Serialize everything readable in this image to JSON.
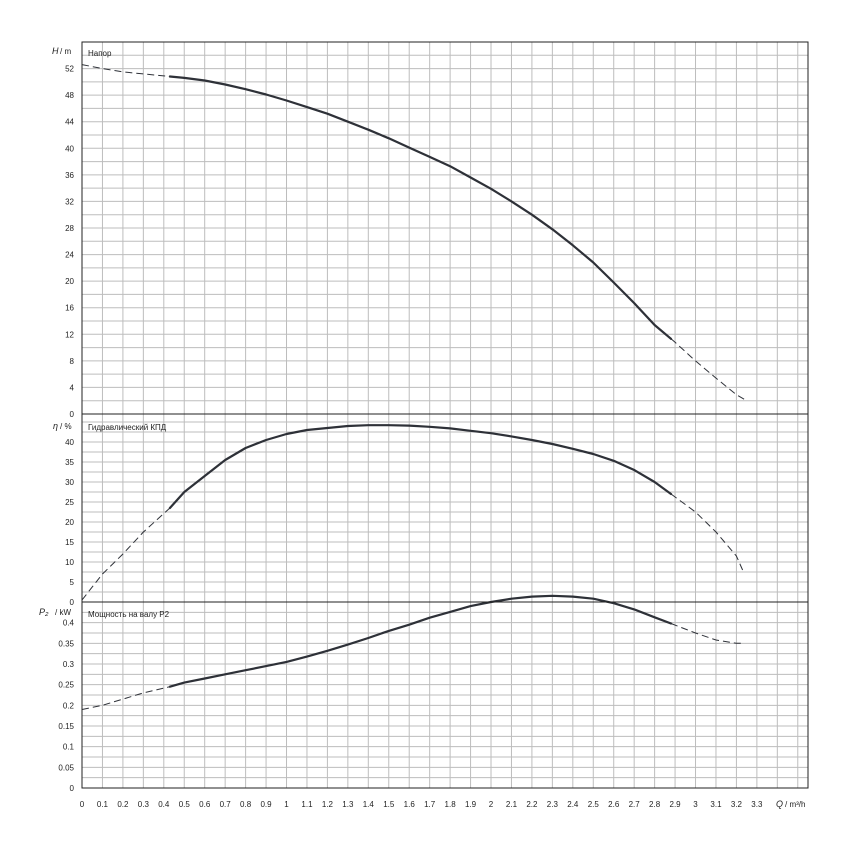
{
  "chart_data": [
    {
      "type": "line",
      "title": "Напор",
      "ylabel": "H",
      "yunit": "m",
      "xlabel": "Q",
      "xunit": "m³/h",
      "xlim": [
        0,
        3.55
      ],
      "ylim": [
        0,
        56
      ],
      "yticks": [
        0,
        4,
        8,
        12,
        16,
        20,
        24,
        28,
        32,
        36,
        40,
        44,
        48,
        52
      ],
      "ytick_labels": [
        "0",
        "4",
        "8",
        "12",
        "16",
        "20",
        "24",
        "28",
        "32",
        "36",
        "40",
        "44",
        "48",
        "52"
      ],
      "grid": true,
      "series": [
        {
          "x": [
            0,
            0.1,
            0.2,
            0.3,
            0.4,
            0.5,
            0.6,
            0.7,
            0.8,
            0.9,
            1.0,
            1.1,
            1.2,
            1.3,
            1.4,
            1.5,
            1.6,
            1.7,
            1.8,
            1.9,
            2.0,
            2.1,
            2.2,
            2.3,
            2.4,
            2.5,
            2.6,
            2.7,
            2.8,
            2.9,
            3.0,
            3.1,
            3.2,
            3.25
          ],
          "y": [
            52.6,
            52.0,
            51.5,
            51.2,
            50.9,
            50.6,
            50.2,
            49.6,
            48.9,
            48.1,
            47.2,
            46.2,
            45.2,
            44.0,
            42.8,
            41.5,
            40.1,
            38.7,
            37.3,
            35.6,
            33.9,
            32.0,
            30.0,
            27.8,
            25.4,
            22.8,
            19.8,
            16.7,
            13.4,
            10.8,
            8.0,
            5.4,
            2.9,
            2.0
          ],
          "solid_range": [
            0.43,
            2.88
          ]
        }
      ]
    },
    {
      "type": "line",
      "title": "Гидравлический КПД",
      "ylabel": "η",
      "yunit": "%",
      "xlabel": "Q",
      "xunit": "m³/h",
      "xlim": [
        0,
        3.55
      ],
      "ylim": [
        0,
        47
      ],
      "yticks": [
        0,
        5,
        10,
        15,
        20,
        25,
        30,
        35,
        40
      ],
      "ytick_labels": [
        "0",
        "5",
        "10",
        "15",
        "20",
        "25",
        "30",
        "35",
        "40"
      ],
      "grid": true,
      "series": [
        {
          "x": [
            0,
            0.1,
            0.2,
            0.3,
            0.43,
            0.5,
            0.6,
            0.7,
            0.8,
            0.9,
            1.0,
            1.1,
            1.2,
            1.3,
            1.4,
            1.5,
            1.6,
            1.7,
            1.8,
            1.9,
            2.0,
            2.1,
            2.2,
            2.3,
            2.4,
            2.5,
            2.6,
            2.7,
            2.8,
            2.88,
            3.0,
            3.1,
            3.2,
            3.23
          ],
          "y": [
            0.5,
            7.0,
            12.0,
            17.5,
            23.5,
            27.5,
            31.5,
            35.5,
            38.5,
            40.5,
            42.0,
            43.0,
            43.5,
            44.0,
            44.2,
            44.2,
            44.1,
            43.8,
            43.4,
            42.8,
            42.2,
            41.4,
            40.5,
            39.5,
            38.3,
            37.0,
            35.3,
            33.0,
            30.0,
            27.0,
            22.5,
            17.5,
            11.5,
            8.0
          ],
          "solid_range": [
            0.43,
            2.88
          ]
        }
      ]
    },
    {
      "type": "line",
      "title": "Мощность на валу P2",
      "ylabel": "P₂",
      "yunit": "kW",
      "xlabel": "Q",
      "xunit": "m³/h",
      "xlim": [
        0,
        3.55
      ],
      "ylim": [
        0,
        0.45
      ],
      "yticks": [
        0,
        0.05,
        0.1,
        0.15,
        0.2,
        0.25,
        0.3,
        0.35,
        0.4
      ],
      "ytick_labels": [
        "0",
        "0.05",
        "0.1",
        "0.15",
        "0.2",
        "0.25",
        "0.3",
        "0.35",
        "0.4"
      ],
      "xticks": [
        0,
        0.1,
        0.2,
        0.3,
        0.4,
        0.5,
        0.6,
        0.7,
        0.8,
        0.9,
        1.0,
        1.1,
        1.2,
        1.3,
        1.4,
        1.5,
        1.6,
        1.7,
        1.8,
        1.9,
        2.0,
        2.1,
        2.2,
        2.3,
        2.4,
        2.5,
        2.6,
        2.7,
        2.8,
        2.9,
        3.0,
        3.1,
        3.2,
        3.3
      ],
      "xtick_labels": [
        "0",
        "0.1",
        "0.2",
        "0.3",
        "0.4",
        "0.5",
        "0.6",
        "0.7",
        "0.8",
        "0.9",
        "1",
        "1.1",
        "1.2",
        "1.3",
        "1.4",
        "1.5",
        "1.6",
        "1.7",
        "1.8",
        "1.9",
        "2",
        "2.1",
        "2.2",
        "2.3",
        "2.4",
        "2.5",
        "2.6",
        "2.7",
        "2.8",
        "2.9",
        "3",
        "3.1",
        "3.2",
        "3.3"
      ],
      "grid": true,
      "series": [
        {
          "x": [
            0,
            0.1,
            0.2,
            0.3,
            0.43,
            0.5,
            0.6,
            0.7,
            0.8,
            0.9,
            1.0,
            1.1,
            1.2,
            1.3,
            1.4,
            1.5,
            1.6,
            1.7,
            1.8,
            1.9,
            2.0,
            2.1,
            2.2,
            2.3,
            2.4,
            2.5,
            2.6,
            2.7,
            2.8,
            2.88,
            3.0,
            3.1,
            3.2,
            3.23
          ],
          "y": [
            0.19,
            0.2,
            0.215,
            0.23,
            0.245,
            0.255,
            0.265,
            0.275,
            0.285,
            0.295,
            0.305,
            0.318,
            0.332,
            0.347,
            0.363,
            0.38,
            0.395,
            0.412,
            0.426,
            0.44,
            0.45,
            0.458,
            0.463,
            0.465,
            0.463,
            0.458,
            0.447,
            0.432,
            0.413,
            0.398,
            0.375,
            0.358,
            0.35,
            0.35
          ],
          "solid_range": [
            0.43,
            2.88
          ]
        }
      ]
    }
  ],
  "labels": {
    "panel1_axis": "H",
    "panel1_unit": "/ m",
    "panel1_title": "Напор",
    "panel2_axis": "η",
    "panel2_unit": "/ %",
    "panel2_title": "Гидравлический КПД",
    "panel3_axis": "P₂",
    "panel3_unit": "/ kW",
    "panel3_title": "Мощность на валу P2",
    "x_axis": "Q",
    "x_unit": "/ m³/h"
  },
  "colors": {
    "curve": "#2e3138",
    "grid": "#bdbdbd",
    "frame": "#222222"
  }
}
